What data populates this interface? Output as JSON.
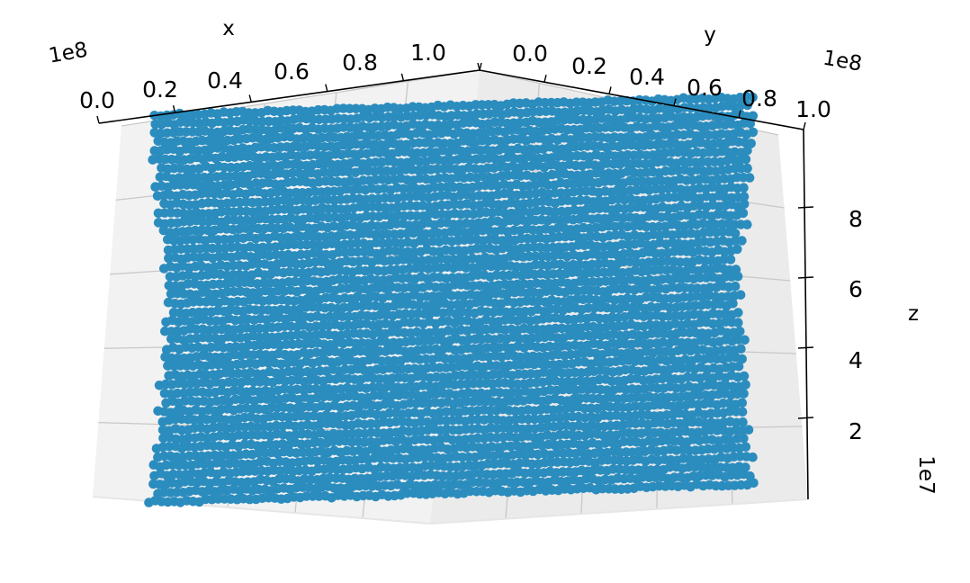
{
  "chart_data": {
    "type": "scatter",
    "projection": "3d",
    "xlabel": "x",
    "ylabel": "y",
    "zlabel": "z",
    "x_ticks": [
      "0.0",
      "0.2",
      "0.4",
      "0.6",
      "0.8",
      "1.0"
    ],
    "y_ticks": [
      "0.0",
      "0.2",
      "0.4",
      "0.6",
      "0.8",
      "1.0"
    ],
    "z_ticks": [
      "2",
      "4",
      "6",
      "8"
    ],
    "x_exponent": "1e8",
    "y_exponent": "1e8",
    "z_exponent": "1e7",
    "xlim": [
      0,
      100000000
    ],
    "ylim": [
      0,
      100000000
    ],
    "zlim": [
      0,
      100000000
    ],
    "grid": true,
    "marker_color": "#2b8cbe",
    "pane_color": "#f2f2f2",
    "grid_color": "#c8c8c8"
  }
}
